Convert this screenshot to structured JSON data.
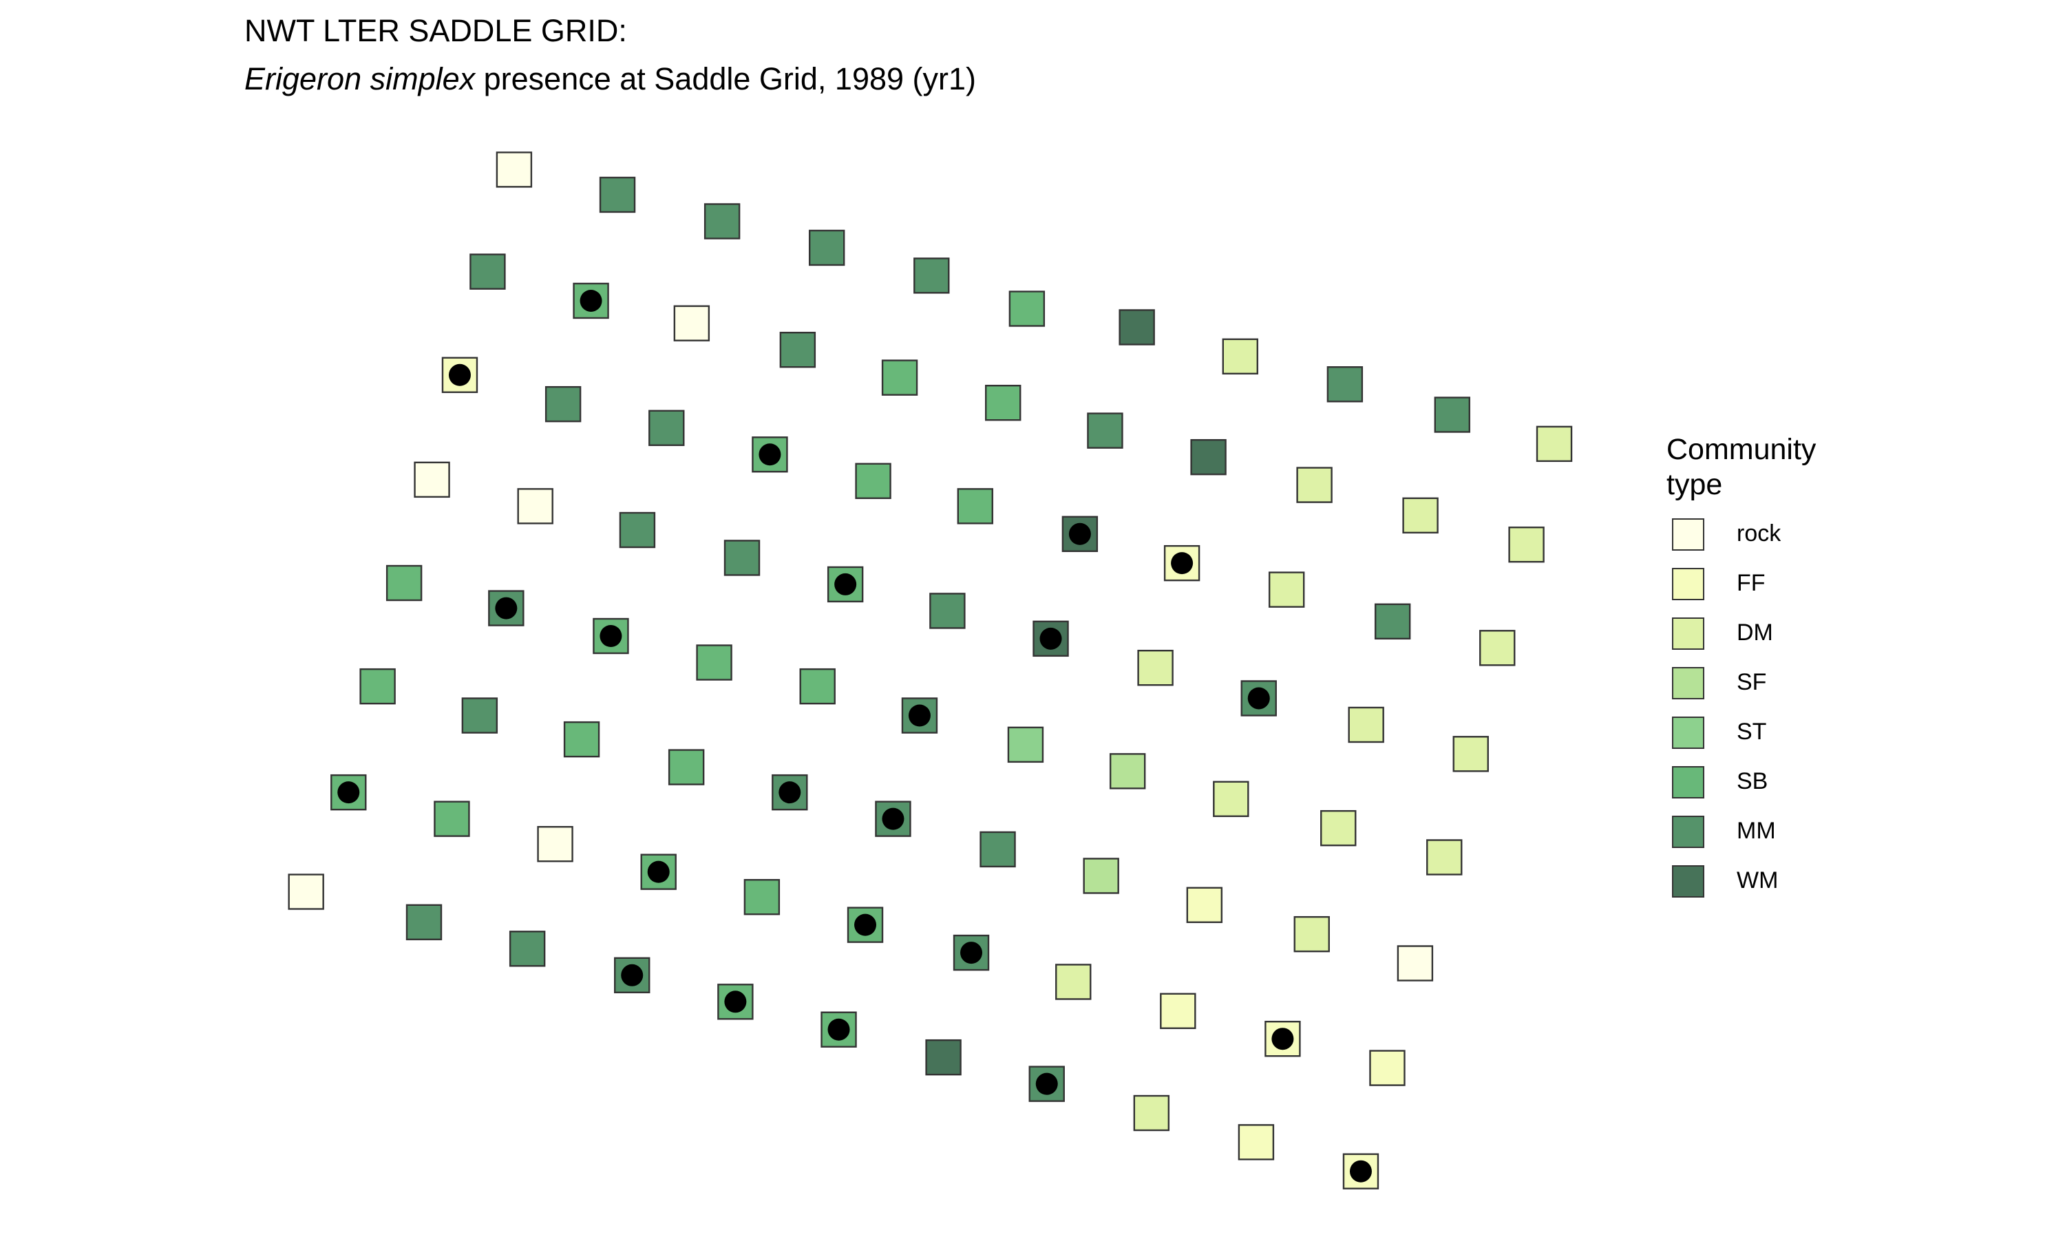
{
  "title": "NWT LTER SADDLE GRID:",
  "subtitle": {
    "italic": "Erigeron simplex",
    "rest": " presence at Saddle Grid, 1989 (yr1)"
  },
  "legend": {
    "title": "Community type",
    "items": [
      {
        "label": "rock",
        "color": "#ffffe8"
      },
      {
        "label": "FF",
        "color": "#f6fcbe"
      },
      {
        "label": "DM",
        "color": "#def2a7"
      },
      {
        "label": "SF",
        "color": "#b5e297"
      },
      {
        "label": "ST",
        "color": "#8dd18e"
      },
      {
        "label": "SB",
        "color": "#68b879"
      },
      {
        "label": "MM",
        "color": "#55936a"
      },
      {
        "label": "WM",
        "color": "#477359"
      }
    ]
  },
  "chart_data": {
    "type": "scatter",
    "title": "NWT LTER SADDLE GRID:",
    "subtitle": "Erigeron simplex presence at Saddle Grid, 1989 (yr1)",
    "xlabel": "",
    "ylabel": "",
    "grid": false,
    "legend_position": "right",
    "marker": "square filled by community type; black dot marks presence",
    "series": [
      {
        "name": "Community type",
        "values": [
          {
            "x": 388,
            "y": 128,
            "community": "rock",
            "present": false
          },
          {
            "x": 466,
            "y": 147,
            "community": "MM",
            "present": false
          },
          {
            "x": 545,
            "y": 167,
            "community": "MM",
            "present": false
          },
          {
            "x": 624,
            "y": 187,
            "community": "MM",
            "present": false
          },
          {
            "x": 703,
            "y": 208,
            "community": "MM",
            "present": false
          },
          {
            "x": 368,
            "y": 205,
            "community": "MM",
            "present": false
          },
          {
            "x": 446,
            "y": 227,
            "community": "SB",
            "present": true
          },
          {
            "x": 522,
            "y": 244,
            "community": "rock",
            "present": false
          },
          {
            "x": 602,
            "y": 264,
            "community": "MM",
            "present": false
          },
          {
            "x": 679,
            "y": 285,
            "community": "SB",
            "present": false
          },
          {
            "x": 757,
            "y": 304,
            "community": "SB",
            "present": false
          },
          {
            "x": 775,
            "y": 233,
            "community": "SB",
            "present": false
          },
          {
            "x": 858,
            "y": 247,
            "community": "WM",
            "present": false
          },
          {
            "x": 936,
            "y": 269,
            "community": "DM",
            "present": false
          },
          {
            "x": 1015,
            "y": 290,
            "community": "MM",
            "present": false
          },
          {
            "x": 1096,
            "y": 313,
            "community": "MM",
            "present": false
          },
          {
            "x": 1173,
            "y": 335,
            "community": "DM",
            "present": false
          },
          {
            "x": 347,
            "y": 283,
            "community": "FF",
            "present": true
          },
          {
            "x": 425,
            "y": 305,
            "community": "MM",
            "present": false
          },
          {
            "x": 503,
            "y": 323,
            "community": "MM",
            "present": false
          },
          {
            "x": 581,
            "y": 343,
            "community": "SB",
            "present": true
          },
          {
            "x": 659,
            "y": 363,
            "community": "SB",
            "present": false
          },
          {
            "x": 736,
            "y": 382,
            "community": "SB",
            "present": false
          },
          {
            "x": 834,
            "y": 325,
            "community": "MM",
            "present": false
          },
          {
            "x": 912,
            "y": 345,
            "community": "WM",
            "present": false
          },
          {
            "x": 992,
            "y": 366,
            "community": "DM",
            "present": false
          },
          {
            "x": 1072,
            "y": 389,
            "community": "DM",
            "present": false
          },
          {
            "x": 1152,
            "y": 411,
            "community": "DM",
            "present": false
          },
          {
            "x": 326,
            "y": 362,
            "community": "rock",
            "present": false
          },
          {
            "x": 404,
            "y": 382,
            "community": "rock",
            "present": false
          },
          {
            "x": 481,
            "y": 400,
            "community": "MM",
            "present": false
          },
          {
            "x": 560,
            "y": 421,
            "community": "MM",
            "present": false
          },
          {
            "x": 638,
            "y": 441,
            "community": "SB",
            "present": true
          },
          {
            "x": 715,
            "y": 461,
            "community": "MM",
            "present": false
          },
          {
            "x": 815,
            "y": 403,
            "community": "WM",
            "present": true
          },
          {
            "x": 892,
            "y": 425,
            "community": "FF",
            "present": true
          },
          {
            "x": 971,
            "y": 445,
            "community": "DM",
            "present": false
          },
          {
            "x": 1051,
            "y": 469,
            "community": "MM",
            "present": false
          },
          {
            "x": 1130,
            "y": 489,
            "community": "DM",
            "present": false
          },
          {
            "x": 305,
            "y": 440,
            "community": "SB",
            "present": false
          },
          {
            "x": 382,
            "y": 459,
            "community": "MM",
            "present": true
          },
          {
            "x": 461,
            "y": 480,
            "community": "SB",
            "present": true
          },
          {
            "x": 539,
            "y": 500,
            "community": "SB",
            "present": false
          },
          {
            "x": 617,
            "y": 518,
            "community": "SB",
            "present": false
          },
          {
            "x": 694,
            "y": 540,
            "community": "MM",
            "present": true
          },
          {
            "x": 793,
            "y": 482,
            "community": "WM",
            "present": true
          },
          {
            "x": 872,
            "y": 504,
            "community": "DM",
            "present": false
          },
          {
            "x": 950,
            "y": 527,
            "community": "MM",
            "present": true
          },
          {
            "x": 1031,
            "y": 547,
            "community": "DM",
            "present": false
          },
          {
            "x": 1110,
            "y": 569,
            "community": "DM",
            "present": false
          },
          {
            "x": 285,
            "y": 518,
            "community": "SB",
            "present": false
          },
          {
            "x": 362,
            "y": 540,
            "community": "MM",
            "present": false
          },
          {
            "x": 439,
            "y": 558,
            "community": "SB",
            "present": false
          },
          {
            "x": 518,
            "y": 579,
            "community": "SB",
            "present": false
          },
          {
            "x": 596,
            "y": 598,
            "community": "MM",
            "present": true
          },
          {
            "x": 674,
            "y": 618,
            "community": "MM",
            "present": true
          },
          {
            "x": 774,
            "y": 562,
            "community": "ST",
            "present": false
          },
          {
            "x": 851,
            "y": 582,
            "community": "SF",
            "present": false
          },
          {
            "x": 929,
            "y": 603,
            "community": "DM",
            "present": false
          },
          {
            "x": 1010,
            "y": 625,
            "community": "DM",
            "present": false
          },
          {
            "x": 1090,
            "y": 647,
            "community": "DM",
            "present": false
          },
          {
            "x": 263,
            "y": 598,
            "community": "SB",
            "present": true
          },
          {
            "x": 341,
            "y": 618,
            "community": "SB",
            "present": false
          },
          {
            "x": 419,
            "y": 637,
            "community": "rock",
            "present": false
          },
          {
            "x": 497,
            "y": 658,
            "community": "SB",
            "present": true
          },
          {
            "x": 575,
            "y": 677,
            "community": "SB",
            "present": false
          },
          {
            "x": 653,
            "y": 698,
            "community": "SB",
            "present": true
          },
          {
            "x": 753,
            "y": 641,
            "community": "MM",
            "present": false
          },
          {
            "x": 831,
            "y": 661,
            "community": "SF",
            "present": false
          },
          {
            "x": 909,
            "y": 683,
            "community": "FF",
            "present": false
          },
          {
            "x": 990,
            "y": 705,
            "community": "DM",
            "present": false
          },
          {
            "x": 1068,
            "y": 727,
            "community": "rock",
            "present": false
          },
          {
            "x": 231,
            "y": 673,
            "community": "rock",
            "present": false
          },
          {
            "x": 320,
            "y": 696,
            "community": "MM",
            "present": false
          },
          {
            "x": 398,
            "y": 716,
            "community": "MM",
            "present": false
          },
          {
            "x": 477,
            "y": 736,
            "community": "MM",
            "present": true
          },
          {
            "x": 555,
            "y": 756,
            "community": "SB",
            "present": true
          },
          {
            "x": 633,
            "y": 777,
            "community": "SB",
            "present": true
          },
          {
            "x": 733,
            "y": 719,
            "community": "MM",
            "present": true
          },
          {
            "x": 810,
            "y": 741,
            "community": "DM",
            "present": false
          },
          {
            "x": 889,
            "y": 763,
            "community": "FF",
            "present": false
          },
          {
            "x": 968,
            "y": 784,
            "community": "FF",
            "present": true
          },
          {
            "x": 1047,
            "y": 806,
            "community": "FF",
            "present": false
          },
          {
            "x": 712,
            "y": 798,
            "community": "WM",
            "present": false
          },
          {
            "x": 790,
            "y": 818,
            "community": "MM",
            "present": true
          },
          {
            "x": 869,
            "y": 840,
            "community": "DM",
            "present": false
          },
          {
            "x": 948,
            "y": 862,
            "community": "FF",
            "present": false
          },
          {
            "x": 1027,
            "y": 884,
            "community": "FF",
            "present": true
          }
        ]
      }
    ]
  }
}
